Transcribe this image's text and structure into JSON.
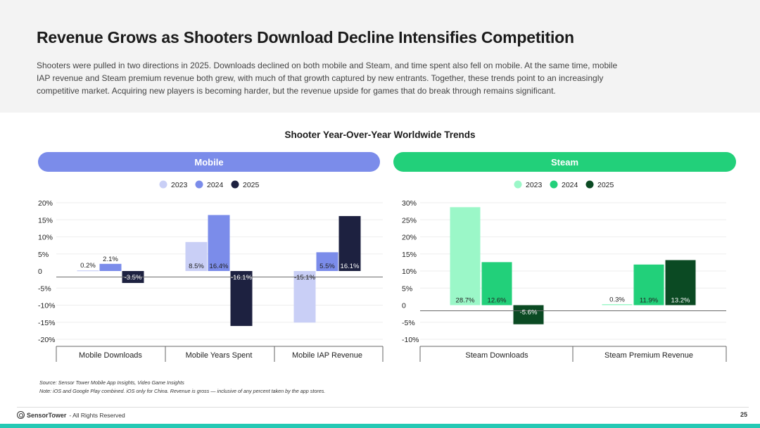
{
  "header": {
    "title": "Revenue Grows as Shooters Download Decline Intensifies Competition",
    "description": "Shooters were pulled in two directions in 2025. Downloads declined on both mobile and Steam, and time spent also fell on mobile. At the same time, mobile IAP revenue and Steam premium revenue both grew, with much of that growth captured by new entrants. Together, these trends point to an increasingly competitive market. Acquiring new players is becoming harder, but the revenue upside for games that do break through remains significant."
  },
  "chart_title": "Shooter Year-Over-Year Worldwide Trends",
  "colors": {
    "mobile_pill": "#7b8cea",
    "steam_pill": "#22d07a",
    "mobile_2023": "#c9cff6",
    "mobile_2024": "#7b8cea",
    "mobile_2025": "#1d2140",
    "steam_2023": "#9bf7c8",
    "steam_2024": "#22d07a",
    "steam_2025": "#0b4a23",
    "accent_bar": "#25c9b4"
  },
  "chart_data": [
    {
      "type": "bar",
      "panel": "Mobile",
      "categories": [
        "Mobile Downloads",
        "Mobile Years Spent",
        "Mobile IAP Revenue"
      ],
      "series": [
        {
          "name": "2023",
          "values": [
            0.2,
            8.5,
            -15.1
          ]
        },
        {
          "name": "2024",
          "values": [
            2.1,
            16.4,
            5.5
          ]
        },
        {
          "name": "2025",
          "values": [
            -3.5,
            -16.1,
            16.1
          ]
        }
      ],
      "data_labels": [
        [
          "0.2%",
          "8.5%",
          "-15.1%"
        ],
        [
          "2.1%",
          "16.4%",
          "5.5%"
        ],
        [
          "-3.5%",
          "-16.1%",
          "16.1%"
        ]
      ],
      "ylim": [
        -20,
        20
      ],
      "yticks": [
        20,
        15,
        10,
        5,
        0,
        -5,
        -10,
        -15,
        -20
      ],
      "ytick_labels": [
        "20%",
        "15%",
        "10%",
        "5%",
        "0",
        "-5%",
        "-10%",
        "-15%",
        "-20%"
      ],
      "legend": "top-center",
      "grid": true
    },
    {
      "type": "bar",
      "panel": "Steam",
      "categories": [
        "Steam Downloads",
        "Steam Premium Revenue"
      ],
      "series": [
        {
          "name": "2023",
          "values": [
            28.7,
            0.3
          ]
        },
        {
          "name": "2024",
          "values": [
            12.6,
            11.9
          ]
        },
        {
          "name": "2025",
          "values": [
            -5.6,
            13.2
          ]
        }
      ],
      "data_labels": [
        [
          "28.7%",
          "0.3%"
        ],
        [
          "12.6%",
          "11.9%"
        ],
        [
          "-5.6%",
          "13.2%"
        ]
      ],
      "ylim": [
        -10,
        30
      ],
      "yticks": [
        30,
        25,
        20,
        15,
        10,
        5,
        0,
        -5,
        -10
      ],
      "ytick_labels": [
        "30%",
        "25%",
        "20%",
        "15%",
        "10%",
        "5%",
        "0",
        "-5%",
        "-10%"
      ],
      "legend": "top-center",
      "grid": true
    }
  ],
  "footnote": {
    "source": "Source: Sensor Tower Mobile App Insights, Video Game Insights",
    "note": "Note: iOS and Google Play combined. iOS only for China. Revenue is gross — inclusive of any percent taken by the app stores."
  },
  "footer": {
    "brand": "SensorTower",
    "rights": "- All Rights Reserved",
    "page": "25"
  }
}
